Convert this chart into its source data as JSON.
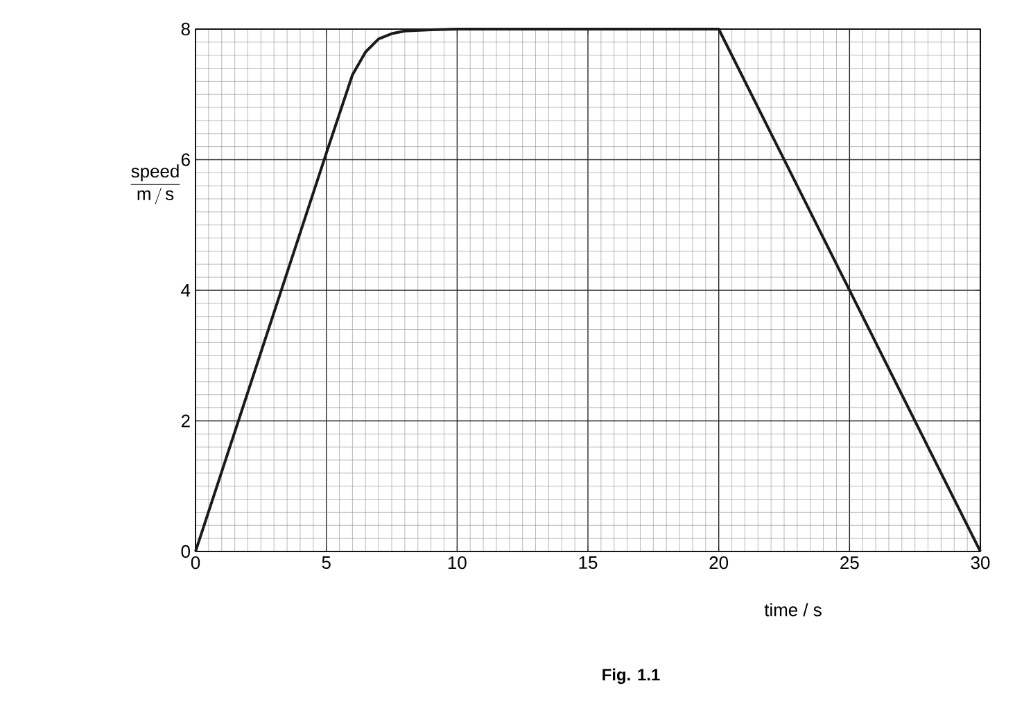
{
  "chart_data": {
    "type": "line",
    "x": [
      0,
      5,
      5.5,
      6,
      6.5,
      7,
      7.5,
      8,
      9,
      10,
      20,
      30
    ],
    "values": [
      0,
      6.1,
      6.7,
      7.3,
      7.65,
      7.85,
      7.93,
      7.97,
      7.99,
      8,
      8,
      0
    ],
    "color": "#1a1a1a",
    "xlim": [
      0,
      30
    ],
    "xticks": [
      0,
      5,
      10,
      15,
      20,
      25,
      30
    ],
    "ylim": [
      0,
      8
    ],
    "yticks": [
      0,
      2,
      4,
      6,
      8
    ],
    "xlabel": "time / s",
    "ylabel": "\\dfrac{\\mathsf{speed}}{\\mathsf{m\\,/\\,s}}",
    "grid": true,
    "marker": "none",
    "line_style": "solid",
    "annotations": [
      "**Fig. 1.1**"
    ]
  }
}
